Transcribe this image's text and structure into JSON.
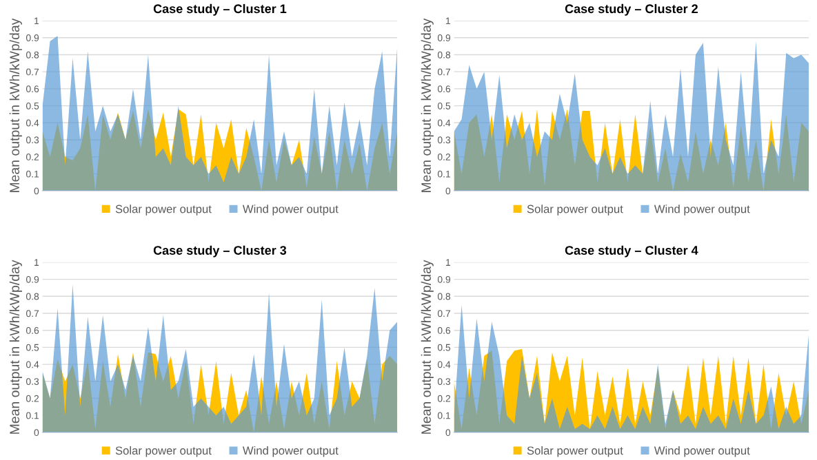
{
  "chart_data": [
    {
      "type": "area",
      "title": "Case study – Cluster 1",
      "ylabel": "Mean output in kWh/kWp/day",
      "categories": [
        null,
        null,
        null,
        null,
        null,
        null,
        null,
        null,
        null,
        null,
        null,
        null,
        null,
        null,
        null,
        null,
        null,
        null,
        null,
        null,
        null,
        null,
        null,
        null,
        null,
        null,
        null,
        null,
        null,
        null,
        null,
        null,
        null,
        null,
        null,
        null,
        null,
        null,
        null,
        null,
        null,
        null,
        null,
        null,
        null,
        null,
        null,
        null
      ],
      "series": [
        {
          "name": "Solar power output",
          "color": "#ffc000",
          "values": [
            0.35,
            0.2,
            0.4,
            0.2,
            0.18,
            0.25,
            0.45,
            0.0,
            0.45,
            0.3,
            0.46,
            0.3,
            0.47,
            0.25,
            0.48,
            0.3,
            0.46,
            0.2,
            0.48,
            0.45,
            0.15,
            0.45,
            0.05,
            0.4,
            0.25,
            0.42,
            0.1,
            0.37,
            0.2,
            0.0,
            0.3,
            0.05,
            0.3,
            0.15,
            0.3,
            0.02,
            0.32,
            0.1,
            0.35,
            0.0,
            0.3,
            0.1,
            0.28,
            0.0,
            0.25,
            0.4,
            0.1,
            0.35
          ]
        },
        {
          "name": "Wind power output",
          "color": "#5b9bd5",
          "values": [
            0.5,
            0.88,
            0.91,
            0.15,
            0.78,
            0.3,
            0.82,
            0.35,
            0.5,
            0.35,
            0.45,
            0.3,
            0.6,
            0.3,
            0.8,
            0.2,
            0.25,
            0.15,
            0.5,
            0.2,
            0.15,
            0.2,
            0.1,
            0.15,
            0.05,
            0.2,
            0.1,
            0.2,
            0.42,
            0.1,
            0.8,
            0.15,
            0.35,
            0.15,
            0.2,
            0.1,
            0.6,
            0.1,
            0.5,
            0.15,
            0.52,
            0.2,
            0.42,
            0.15,
            0.6,
            0.82,
            0.2,
            0.85
          ]
        }
      ],
      "ylim": [
        0,
        1
      ],
      "yticks": [
        0,
        0.1,
        0.2,
        0.3,
        0.4,
        0.5,
        0.6,
        0.7,
        0.8,
        0.9,
        1
      ],
      "grid": "y",
      "legend": "bottom"
    },
    {
      "type": "area",
      "title": "Case study – Cluster 2",
      "ylabel": "Mean output in kWh/kWp/day",
      "categories": [
        null,
        null,
        null,
        null,
        null,
        null,
        null,
        null,
        null,
        null,
        null,
        null,
        null,
        null,
        null,
        null,
        null,
        null,
        null,
        null,
        null,
        null,
        null,
        null,
        null,
        null,
        null,
        null,
        null,
        null,
        null,
        null,
        null,
        null,
        null,
        null,
        null,
        null,
        null,
        null,
        null,
        null,
        null,
        null,
        null,
        null,
        null,
        null
      ],
      "series": [
        {
          "name": "Solar power output",
          "color": "#ffc000",
          "values": [
            0.35,
            0.1,
            0.4,
            0.45,
            0.2,
            0.45,
            0.05,
            0.45,
            0.3,
            0.47,
            0.1,
            0.48,
            0.03,
            0.47,
            0.3,
            0.48,
            0.15,
            0.47,
            0.47,
            0.05,
            0.4,
            0.1,
            0.42,
            0.05,
            0.45,
            0.1,
            0.38,
            0.05,
            0.25,
            0.0,
            0.22,
            0.05,
            0.35,
            0.1,
            0.3,
            0.15,
            0.4,
            0.02,
            0.38,
            0.05,
            0.3,
            0.0,
            0.42,
            0.1,
            0.45,
            0.05,
            0.4,
            0.35
          ]
        },
        {
          "name": "Wind power output",
          "color": "#5b9bd5",
          "values": [
            0.35,
            0.42,
            0.74,
            0.6,
            0.7,
            0.3,
            0.68,
            0.25,
            0.45,
            0.3,
            0.4,
            0.2,
            0.35,
            0.3,
            0.57,
            0.4,
            0.69,
            0.3,
            0.2,
            0.15,
            0.25,
            0.1,
            0.2,
            0.1,
            0.15,
            0.1,
            0.53,
            0.1,
            0.45,
            0.2,
            0.72,
            0.2,
            0.8,
            0.87,
            0.2,
            0.73,
            0.3,
            0.15,
            0.7,
            0.2,
            0.88,
            0.1,
            0.3,
            0.2,
            0.81,
            0.78,
            0.8,
            0.75
          ]
        }
      ],
      "ylim": [
        0,
        1
      ],
      "yticks": [
        0,
        0.1,
        0.2,
        0.3,
        0.4,
        0.5,
        0.6,
        0.7,
        0.8,
        0.9,
        1
      ],
      "grid": "y",
      "legend": "bottom"
    },
    {
      "type": "area",
      "title": "Case study – Cluster 3",
      "ylabel": "Mean output in kWh/kWp/day",
      "categories": [
        null,
        null,
        null,
        null,
        null,
        null,
        null,
        null,
        null,
        null,
        null,
        null,
        null,
        null,
        null,
        null,
        null,
        null,
        null,
        null,
        null,
        null,
        null,
        null,
        null,
        null,
        null,
        null,
        null,
        null,
        null,
        null,
        null,
        null,
        null,
        null,
        null,
        null,
        null,
        null,
        null,
        null,
        null,
        null,
        null,
        null,
        null,
        null
      ],
      "series": [
        {
          "name": "Solar power output",
          "color": "#ffc000",
          "values": [
            0.35,
            0.2,
            0.43,
            0.3,
            0.4,
            0.2,
            0.42,
            0.02,
            0.42,
            0.15,
            0.46,
            0.2,
            0.47,
            0.15,
            0.47,
            0.46,
            0.3,
            0.45,
            0.2,
            0.42,
            0.05,
            0.4,
            0.1,
            0.42,
            0.05,
            0.35,
            0.1,
            0.25,
            0.0,
            0.33,
            0.05,
            0.3,
            0.02,
            0.3,
            0.1,
            0.35,
            0.05,
            0.3,
            0.02,
            0.42,
            0.1,
            0.3,
            0.2,
            0.43,
            0.05,
            0.4,
            0.45,
            0.4
          ]
        },
        {
          "name": "Wind power output",
          "color": "#5b9bd5",
          "values": [
            0.36,
            0.2,
            0.73,
            0.1,
            0.87,
            0.15,
            0.68,
            0.3,
            0.69,
            0.3,
            0.4,
            0.25,
            0.45,
            0.3,
            0.62,
            0.3,
            0.69,
            0.25,
            0.3,
            0.49,
            0.15,
            0.2,
            0.15,
            0.1,
            0.15,
            0.05,
            0.1,
            0.15,
            0.46,
            0.1,
            0.82,
            0.15,
            0.52,
            0.2,
            0.3,
            0.1,
            0.2,
            0.78,
            0.1,
            0.2,
            0.5,
            0.15,
            0.2,
            0.45,
            0.85,
            0.3,
            0.6,
            0.65
          ]
        }
      ],
      "ylim": [
        0,
        1
      ],
      "yticks": [
        0,
        0.1,
        0.2,
        0.3,
        0.4,
        0.5,
        0.6,
        0.7,
        0.8,
        0.9,
        1
      ],
      "grid": "y",
      "legend": "bottom"
    },
    {
      "type": "area",
      "title": "Case study – Cluster 4",
      "ylabel": "Mean output in kWh/kWp/day",
      "categories": [
        null,
        null,
        null,
        null,
        null,
        null,
        null,
        null,
        null,
        null,
        null,
        null,
        null,
        null,
        null,
        null,
        null,
        null,
        null,
        null,
        null,
        null,
        null,
        null,
        null,
        null,
        null,
        null,
        null,
        null,
        null,
        null,
        null,
        null,
        null,
        null,
        null,
        null,
        null,
        null,
        null,
        null,
        null,
        null,
        null,
        null,
        null,
        null
      ],
      "series": [
        {
          "name": "Solar power output",
          "color": "#ffc000",
          "values": [
            0.3,
            0.02,
            0.38,
            0.1,
            0.45,
            0.48,
            0.05,
            0.42,
            0.48,
            0.49,
            0.2,
            0.45,
            0.05,
            0.47,
            0.3,
            0.45,
            0.1,
            0.44,
            0.02,
            0.36,
            0.1,
            0.33,
            0.05,
            0.38,
            0.05,
            0.3,
            0.1,
            0.38,
            0.02,
            0.25,
            0.1,
            0.4,
            0.05,
            0.44,
            0.1,
            0.45,
            0.05,
            0.45,
            0.1,
            0.44,
            0.05,
            0.4,
            0.02,
            0.35,
            0.1,
            0.3,
            0.05,
            0.25
          ]
        },
        {
          "name": "Wind power output",
          "color": "#5b9bd5",
          "values": [
            0.1,
            0.75,
            0.2,
            0.67,
            0.3,
            0.65,
            0.45,
            0.1,
            0.05,
            0.45,
            0.2,
            0.35,
            0.05,
            0.2,
            0.02,
            0.15,
            0.02,
            0.05,
            0.02,
            0.1,
            0.02,
            0.15,
            0.02,
            0.1,
            0.02,
            0.15,
            0.05,
            0.4,
            0.05,
            0.25,
            0.05,
            0.1,
            0.02,
            0.15,
            0.05,
            0.1,
            0.02,
            0.2,
            0.05,
            0.25,
            0.05,
            0.1,
            0.27,
            0.02,
            0.15,
            0.05,
            0.1,
            0.58
          ]
        }
      ],
      "ylim": [
        0,
        1
      ],
      "yticks": [
        0,
        0.1,
        0.2,
        0.3,
        0.4,
        0.5,
        0.6,
        0.7,
        0.8,
        0.9,
        1
      ],
      "grid": "y",
      "legend": "bottom"
    }
  ]
}
